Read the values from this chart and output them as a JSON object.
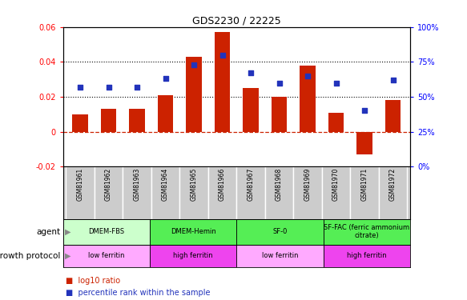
{
  "title": "GDS2230 / 22225",
  "samples": [
    "GSM81961",
    "GSM81962",
    "GSM81963",
    "GSM81964",
    "GSM81965",
    "GSM81966",
    "GSM81967",
    "GSM81968",
    "GSM81969",
    "GSM81970",
    "GSM81971",
    "GSM81972"
  ],
  "log10_ratio": [
    0.01,
    0.013,
    0.013,
    0.021,
    0.043,
    0.057,
    0.025,
    0.02,
    0.038,
    0.011,
    -0.013,
    0.018
  ],
  "percentile_rank": [
    0.57,
    0.57,
    0.57,
    0.63,
    0.73,
    0.8,
    0.67,
    0.6,
    0.65,
    0.6,
    0.4,
    0.62
  ],
  "ylim_left": [
    -0.02,
    0.06
  ],
  "ylim_right": [
    0.0,
    1.0
  ],
  "yticks_left": [
    -0.02,
    0.0,
    0.02,
    0.04,
    0.06
  ],
  "ytick_labels_left": [
    "-0.02",
    "0",
    "0.02",
    "0.04",
    "0.06"
  ],
  "yticks_right": [
    0.0,
    0.25,
    0.5,
    0.75,
    1.0
  ],
  "ytick_labels_right": [
    "0%",
    "25%",
    "50%",
    "75%",
    "100%"
  ],
  "bar_color": "#cc2200",
  "dot_color": "#2233bb",
  "dotted_lines": [
    0.02,
    0.04
  ],
  "agent_groups": [
    {
      "label": "DMEM-FBS",
      "start": 0,
      "end": 3,
      "color": "#ccffcc"
    },
    {
      "label": "DMEM-Hemin",
      "start": 3,
      "end": 6,
      "color": "#55ee55"
    },
    {
      "label": "SF-0",
      "start": 6,
      "end": 9,
      "color": "#55ee55"
    },
    {
      "label": "SF-FAC (ferric ammonium\ncitrate)",
      "start": 9,
      "end": 12,
      "color": "#55ee55"
    }
  ],
  "protocol_groups": [
    {
      "label": "low ferritin",
      "start": 0,
      "end": 3,
      "color": "#ffaaff"
    },
    {
      "label": "high ferritin",
      "start": 3,
      "end": 6,
      "color": "#ee44ee"
    },
    {
      "label": "low ferritin",
      "start": 6,
      "end": 9,
      "color": "#ffaaff"
    },
    {
      "label": "high ferritin",
      "start": 9,
      "end": 12,
      "color": "#ee44ee"
    }
  ],
  "legend_red_label": "log10 ratio",
  "legend_blue_label": "percentile rank within the sample",
  "bg_color": "#ffffff",
  "sample_bg_color": "#cccccc"
}
